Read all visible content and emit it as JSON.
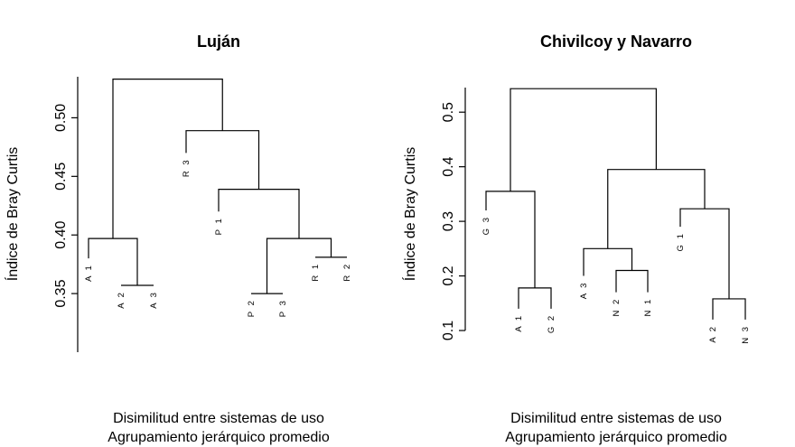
{
  "chart_data": [
    {
      "type": "dendrogram",
      "title": "Luján",
      "ylabel": "Índice de Bray Curtis",
      "xlabel": [
        "Disimilitud entre sistemas de uso",
        "Agrupamiento jerárquico promedio"
      ],
      "yticks": [
        0.35,
        0.4,
        0.45,
        0.5
      ],
      "ytick_labels": [
        "0.35",
        "0.40",
        "0.45",
        "0.50"
      ],
      "ylim": [
        0.3,
        0.535
      ],
      "leaves": [
        "A 1",
        "A 2",
        "A 3",
        "R 3",
        "P 1",
        "P 2",
        "P 3",
        "R 1",
        "R 2"
      ],
      "leaf_tips": [
        0.38,
        0.357,
        0.357,
        0.47,
        0.42,
        0.35,
        0.35,
        0.381,
        0.381
      ],
      "merges": [
        {
          "a": "A 2",
          "b": "A 3",
          "height": 0.357
        },
        {
          "a": "P 2",
          "b": "P 3",
          "height": 0.35
        },
        {
          "a": "R 1",
          "b": "R 2",
          "height": 0.381
        },
        {
          "a": "A 1",
          "b": "A 2+A 3",
          "height": 0.397
        },
        {
          "a": "P 2+P 3",
          "b": "R 1+R 2",
          "height": 0.397
        },
        {
          "a": "P 1",
          "b": "P 2+P 3+R 1+R 2",
          "height": 0.439
        },
        {
          "a": "R 3",
          "b": "P 1+P 2+P 3+R 1+R 2",
          "height": 0.489
        },
        {
          "a": "A 1+A 2+A 3",
          "b": "R 3+P 1+P 2+P 3+R 1+R 2",
          "height": 0.533
        }
      ]
    },
    {
      "type": "dendrogram",
      "title": "Chivilcoy y Navarro",
      "ylabel": "Índice de Bray Curtis",
      "xlabel": [
        "Disimilitud entre sistemas de uso",
        "Agrupamiento jerárquico promedio"
      ],
      "yticks": [
        0.1,
        0.2,
        0.3,
        0.4,
        0.5
      ],
      "ytick_labels": [
        "0.1",
        "0.2",
        "0.3",
        "0.4",
        "0.5"
      ],
      "ylim": [
        0.1,
        0.545
      ],
      "leaves": [
        "G 3",
        "A 1",
        "G 2",
        "A 3",
        "N 2",
        "N 1",
        "G 1",
        "A 2",
        "N 3"
      ],
      "leaf_tips": [
        0.32,
        0.14,
        0.14,
        0.2,
        0.17,
        0.17,
        0.29,
        0.12,
        0.12
      ],
      "merges": [
        {
          "a": "A 1",
          "b": "G 2",
          "height": 0.178
        },
        {
          "a": "N 2",
          "b": "N 1",
          "height": 0.21
        },
        {
          "a": "A 2",
          "b": "N 3",
          "height": 0.158
        },
        {
          "a": "G 3",
          "b": "A 1+G 2",
          "height": 0.355
        },
        {
          "a": "A 3",
          "b": "N 2+N 1",
          "height": 0.25
        },
        {
          "a": "G 1",
          "b": "A 2+N 3",
          "height": 0.323
        },
        {
          "a": "A 3+N 2+N 1",
          "b": "G 1+A 2+N 3",
          "height": 0.395
        },
        {
          "a": "G 3+A 1+G 2",
          "b": "A 3+N 2+N 1+G 1+A 2+N 3",
          "height": 0.543
        }
      ]
    }
  ]
}
